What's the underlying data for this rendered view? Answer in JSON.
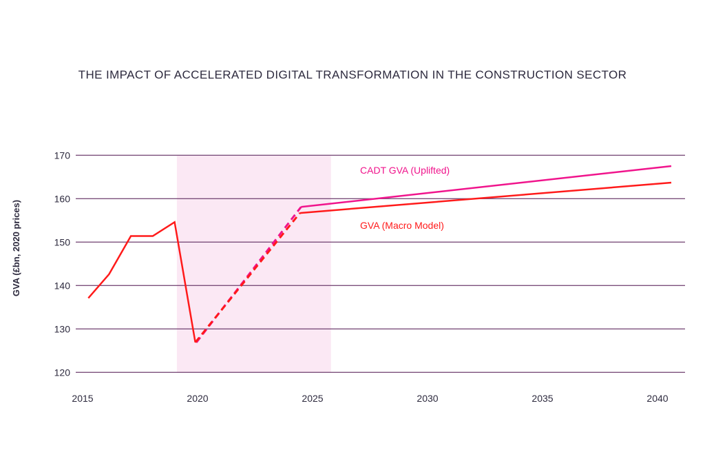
{
  "chart_data": {
    "type": "line",
    "title": "THE IMPACT OF ACCELERATED DIGITAL TRANSFORMATION IN THE CONSTRUCTION SECTOR",
    "xlabel": "",
    "ylabel": "GVA (£bn, 2020 prices)",
    "xlim": [
      2015,
      2041
    ],
    "ylim": [
      120,
      170
    ],
    "x_ticks": [
      "2015",
      "2020",
      "2025",
      "2030",
      "2035",
      "2040"
    ],
    "y_ticks": [
      "120",
      "130",
      "140",
      "150",
      "160",
      "170"
    ],
    "grid": "horizontal",
    "shaded_region": {
      "x": [
        2019.1,
        2025.8
      ],
      "color": "#fbe8f4"
    },
    "colors": {
      "grid": "#7b4f7b",
      "text": "#2d2a3e"
    },
    "series": [
      {
        "name": "GVA (Macro Model)",
        "color": "#ff1a1a",
        "historical": [
          [
            2015.25,
            137.1
          ],
          [
            2016.15,
            142.6
          ],
          [
            2017.1,
            151.4
          ],
          [
            2018.05,
            151.4
          ],
          [
            2019.0,
            154.6
          ],
          [
            2019.9,
            126.9
          ]
        ],
        "dashed": [
          [
            2019.9,
            126.9
          ],
          [
            2024.45,
            156.7
          ]
        ],
        "projection": [
          [
            2024.45,
            156.7
          ],
          [
            2040.6,
            163.7
          ]
        ]
      },
      {
        "name": "CADT GVA (Uplifted)",
        "color": "#f0148c",
        "dashed": [
          [
            2019.95,
            126.9
          ],
          [
            2024.5,
            158.1
          ]
        ],
        "projection": [
          [
            2024.5,
            158.1
          ],
          [
            2040.6,
            167.5
          ]
        ]
      }
    ]
  }
}
